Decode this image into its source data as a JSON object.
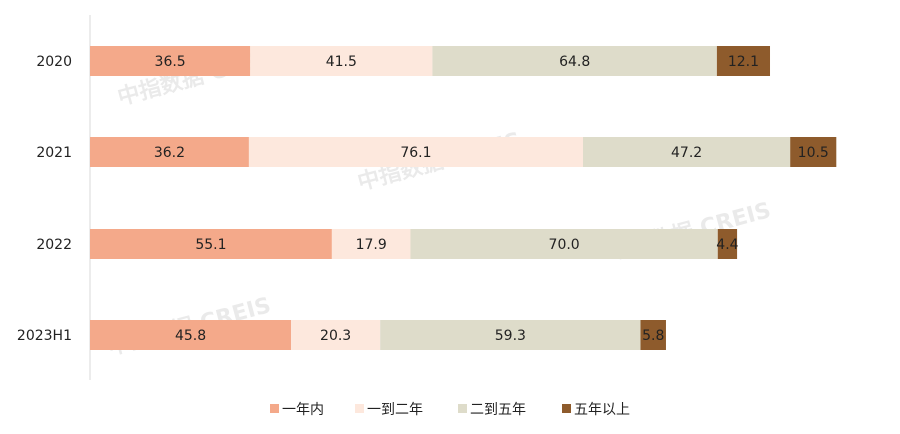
{
  "chart_data": {
    "type": "bar",
    "orientation": "horizontal",
    "stacked": true,
    "categories": [
      "2020",
      "2021",
      "2022",
      "2023H1"
    ],
    "series": [
      {
        "name": "一年内",
        "color": "#F4A98A",
        "values": [
          36.5,
          36.2,
          55.1,
          45.8
        ]
      },
      {
        "name": "一到二年",
        "color": "#FDE8DD",
        "values": [
          41.5,
          76.1,
          17.9,
          20.3
        ]
      },
      {
        "name": "二到五年",
        "color": "#DEDCCA",
        "values": [
          64.8,
          47.2,
          70.0,
          59.3
        ]
      },
      {
        "name": "五年以上",
        "color": "#8E5B2C",
        "values": [
          12.1,
          10.5,
          4.4,
          5.8
        ]
      }
    ],
    "data_labels": true,
    "legend": "bottom",
    "grid": false
  },
  "watermark": "中指数据 CREIS"
}
